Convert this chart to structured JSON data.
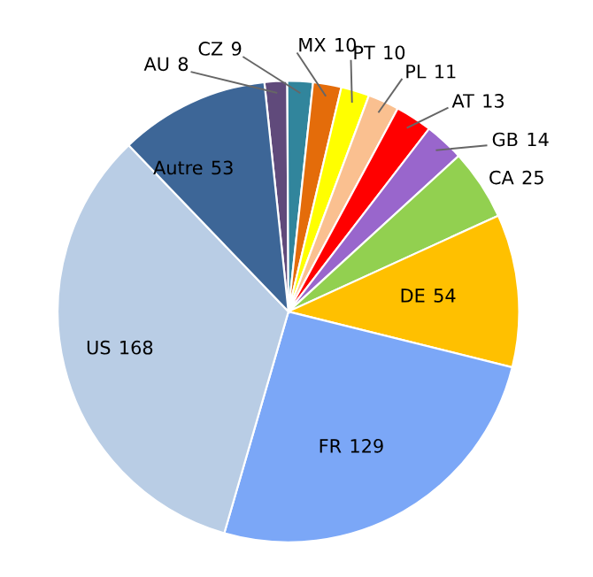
{
  "chart_data": {
    "type": "pie",
    "categories": [
      "AU",
      "CZ",
      "MX",
      "PT",
      "PL",
      "AT",
      "GB",
      "CA",
      "DE",
      "FR",
      "US",
      "Autre"
    ],
    "values": [
      8,
      9,
      10,
      10,
      11,
      13,
      14,
      25,
      54,
      129,
      168,
      53
    ],
    "colors": [
      "#604a7b",
      "#31859c",
      "#e46c0a",
      "#ffff00",
      "#fac090",
      "#ff0000",
      "#9966cc",
      "#92d050",
      "#ffc000",
      "#7ba7f7",
      "#b9cde5",
      "#3d6697"
    ],
    "data_labels": true
  }
}
